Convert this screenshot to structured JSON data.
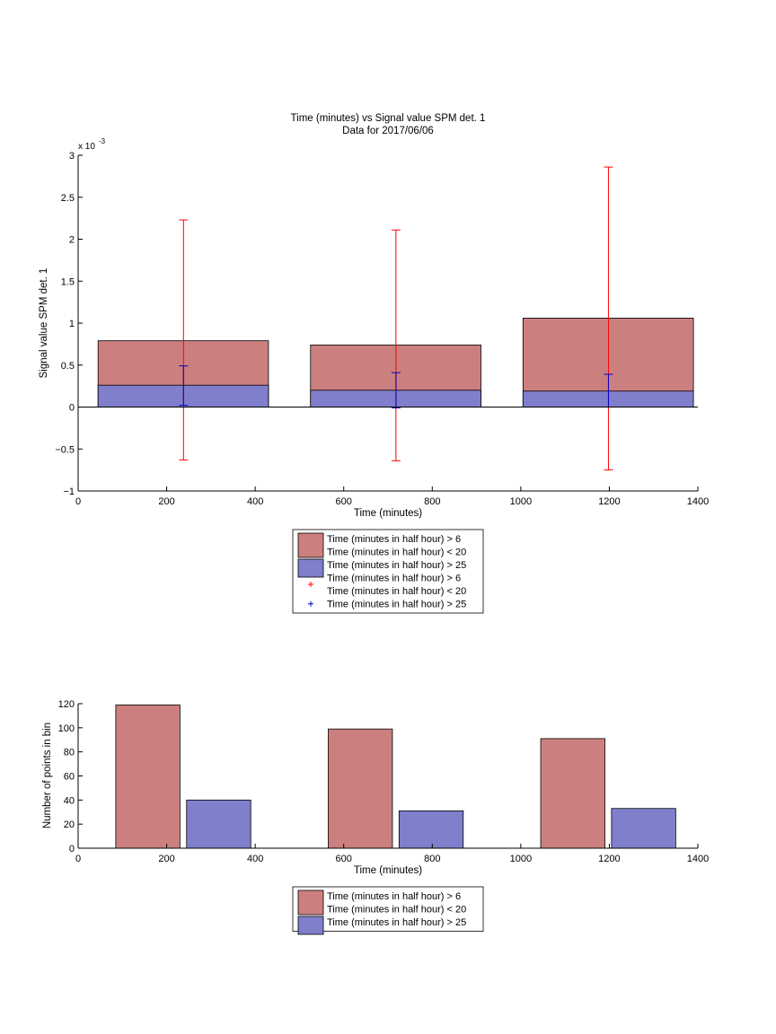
{
  "chart_data": [
    {
      "type": "bar",
      "title": "Time (minutes) vs Signal value SPM det. 1",
      "subtitle": "Data for 2017/06/06",
      "xlabel": "Time (minutes)",
      "ylabel": "Signal value SPM det. 1",
      "exponent_label": "x 10",
      "exponent_power": "-3",
      "xlim": [
        0,
        1400
      ],
      "ylim": [
        -1,
        3
      ],
      "y_scale_factor": 0.001,
      "xticks": [
        "0",
        "200",
        "400",
        "600",
        "800",
        "1000",
        "1200",
        "1400"
      ],
      "yticks": [
        "−1",
        "−0.5",
        "0",
        "0.5",
        "1",
        "1.5",
        "2",
        "2.5",
        "3"
      ],
      "series": [
        {
          "name": "Time (minutes in half hour) > 6 Time (minutes in half hour) < 20",
          "color": "#cc7f7f",
          "bins": [
            {
              "x0": 45,
              "x1": 430,
              "value": 0.79
            },
            {
              "x0": 525,
              "x1": 910,
              "value": 0.74
            },
            {
              "x0": 1005,
              "x1": 1390,
              "value": 1.06
            }
          ]
        },
        {
          "name": "Time (minutes in half hour) > 25",
          "color": "#7f7fcc",
          "bins": [
            {
              "x0": 45,
              "x1": 430,
              "value": 0.26
            },
            {
              "x0": 525,
              "x1": 910,
              "value": 0.2
            },
            {
              "x0": 1005,
              "x1": 1390,
              "value": 0.19
            }
          ]
        }
      ],
      "error_bars": [
        {
          "name": "Time (minutes in half hour) > 6 Time (minutes in half hour) < 20",
          "color": "#ff0000",
          "points": [
            {
              "x": 238,
              "low": -0.63,
              "high": 2.23
            },
            {
              "x": 718,
              "low": -0.64,
              "high": 2.11
            },
            {
              "x": 1198,
              "low": -0.75,
              "high": 2.86
            }
          ]
        },
        {
          "name": "Time (minutes in half hour) > 25",
          "color": "#0000cc",
          "points": [
            {
              "x": 238,
              "low": 0.02,
              "high": 0.49
            },
            {
              "x": 718,
              "low": -0.01,
              "high": 0.41
            },
            {
              "x": 1198,
              "low": 0.0,
              "high": 0.39
            }
          ]
        }
      ],
      "legend": {
        "placement": "below",
        "entries": [
          {
            "kind": "patch",
            "color": "#cc7f7f",
            "lines": [
              "Time (minutes in half hour) > 6",
              "Time (minutes in half hour) < 20"
            ]
          },
          {
            "kind": "patch",
            "color": "#7f7fcc",
            "lines": [
              "Time (minutes in half hour) > 25"
            ]
          },
          {
            "kind": "marker",
            "color": "#ff0000",
            "lines": [
              "Time (minutes in half hour) > 6",
              "Time (minutes in half hour) < 20"
            ]
          },
          {
            "kind": "marker",
            "color": "#0000cc",
            "lines": [
              "Time (minutes in half hour) > 25"
            ]
          }
        ]
      }
    },
    {
      "type": "bar",
      "title": "",
      "xlabel": "Time (minutes)",
      "ylabel": "Number of points in bin",
      "xlim": [
        0,
        1400
      ],
      "ylim": [
        0,
        120
      ],
      "xticks": [
        "0",
        "200",
        "400",
        "600",
        "800",
        "1000",
        "1200",
        "1400"
      ],
      "yticks": [
        "0",
        "20",
        "40",
        "60",
        "80",
        "100",
        "120"
      ],
      "series": [
        {
          "name": "Time (minutes in half hour) > 6 Time (minutes in half hour) < 20",
          "color": "#cc7f7f",
          "bins": [
            {
              "x0": 85,
              "x1": 230,
              "value": 119
            },
            {
              "x0": 565,
              "x1": 710,
              "value": 99
            },
            {
              "x0": 1045,
              "x1": 1190,
              "value": 91
            }
          ]
        },
        {
          "name": "Time (minutes in half hour) > 25",
          "color": "#7f7fcc",
          "bins": [
            {
              "x0": 245,
              "x1": 390,
              "value": 40
            },
            {
              "x0": 725,
              "x1": 870,
              "value": 31
            },
            {
              "x0": 1205,
              "x1": 1350,
              "value": 33
            }
          ]
        }
      ],
      "legend": {
        "placement": "below",
        "entries": [
          {
            "kind": "patch",
            "color": "#cc7f7f",
            "lines": [
              "Time (minutes in half hour) > 6",
              "Time (minutes in half hour) < 20"
            ]
          },
          {
            "kind": "patch",
            "color": "#7f7fcc",
            "lines": [
              "Time (minutes in half hour) > 25"
            ]
          }
        ]
      }
    }
  ]
}
